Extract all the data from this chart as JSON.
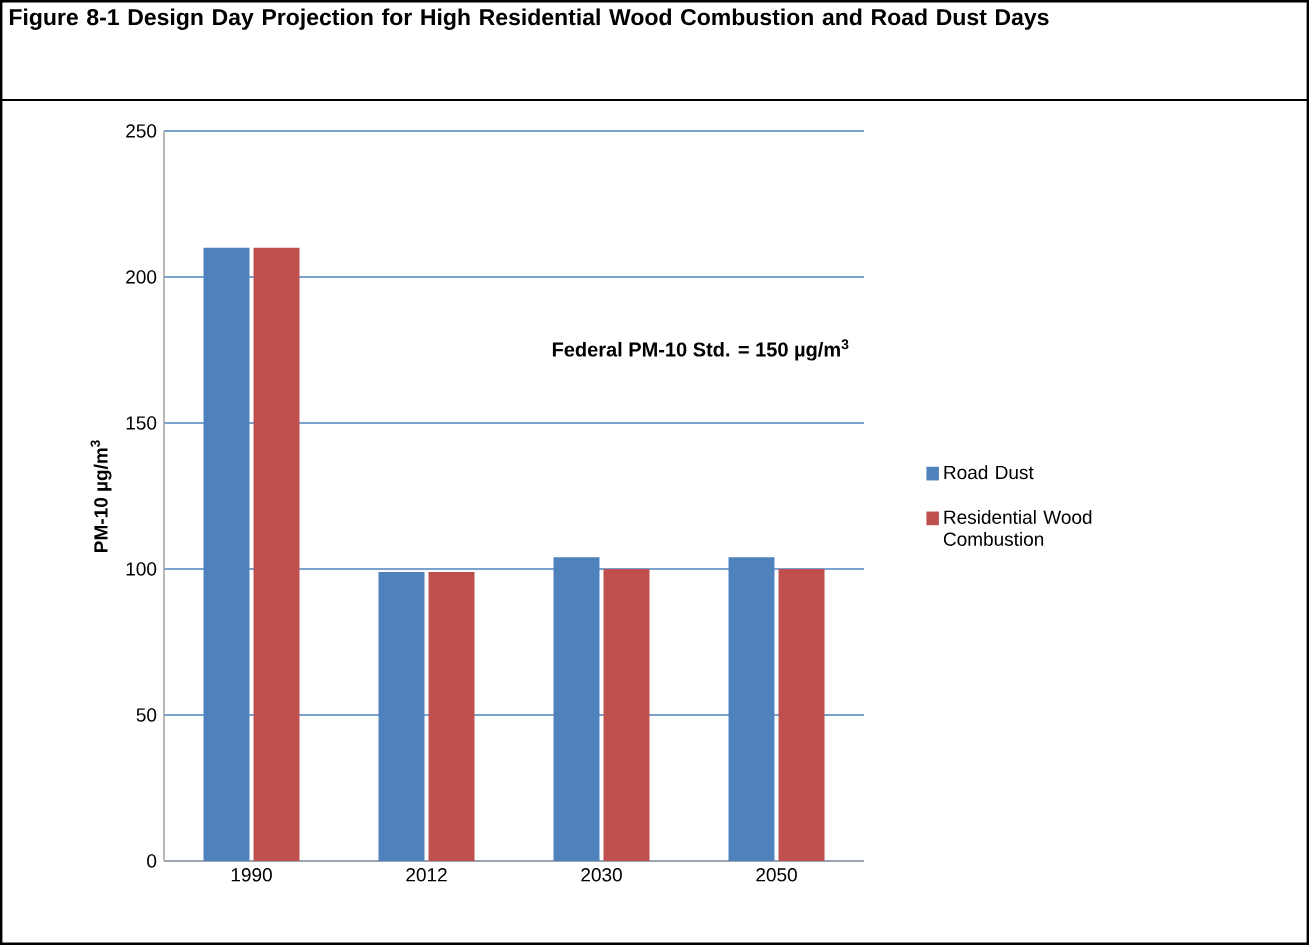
{
  "chart_data": {
    "type": "bar",
    "title": "Figure 8-1  Design Day Projection for High Residential Wood Combustion and Road Dust Days",
    "ylabel": "PM-10 µg/m$^{3}$",
    "categories": [
      "1990",
      "2012",
      "2030",
      "2050"
    ],
    "series": [
      {
        "name": "Road Dust",
        "color": "#4f81bd",
        "values": [
          210,
          99,
          104,
          104
        ]
      },
      {
        "name": "Residential Wood Combustion",
        "color": "#c0504d",
        "values": [
          210,
          99,
          100,
          100
        ]
      }
    ],
    "ylim": [
      0,
      250
    ],
    "yticks": [
      0,
      50,
      100,
      150,
      200,
      250
    ],
    "grid": "y",
    "legend": "right",
    "annotations": [
      "Federal PM-10 Std.  = 150 µg/m$^{3}$"
    ]
  }
}
